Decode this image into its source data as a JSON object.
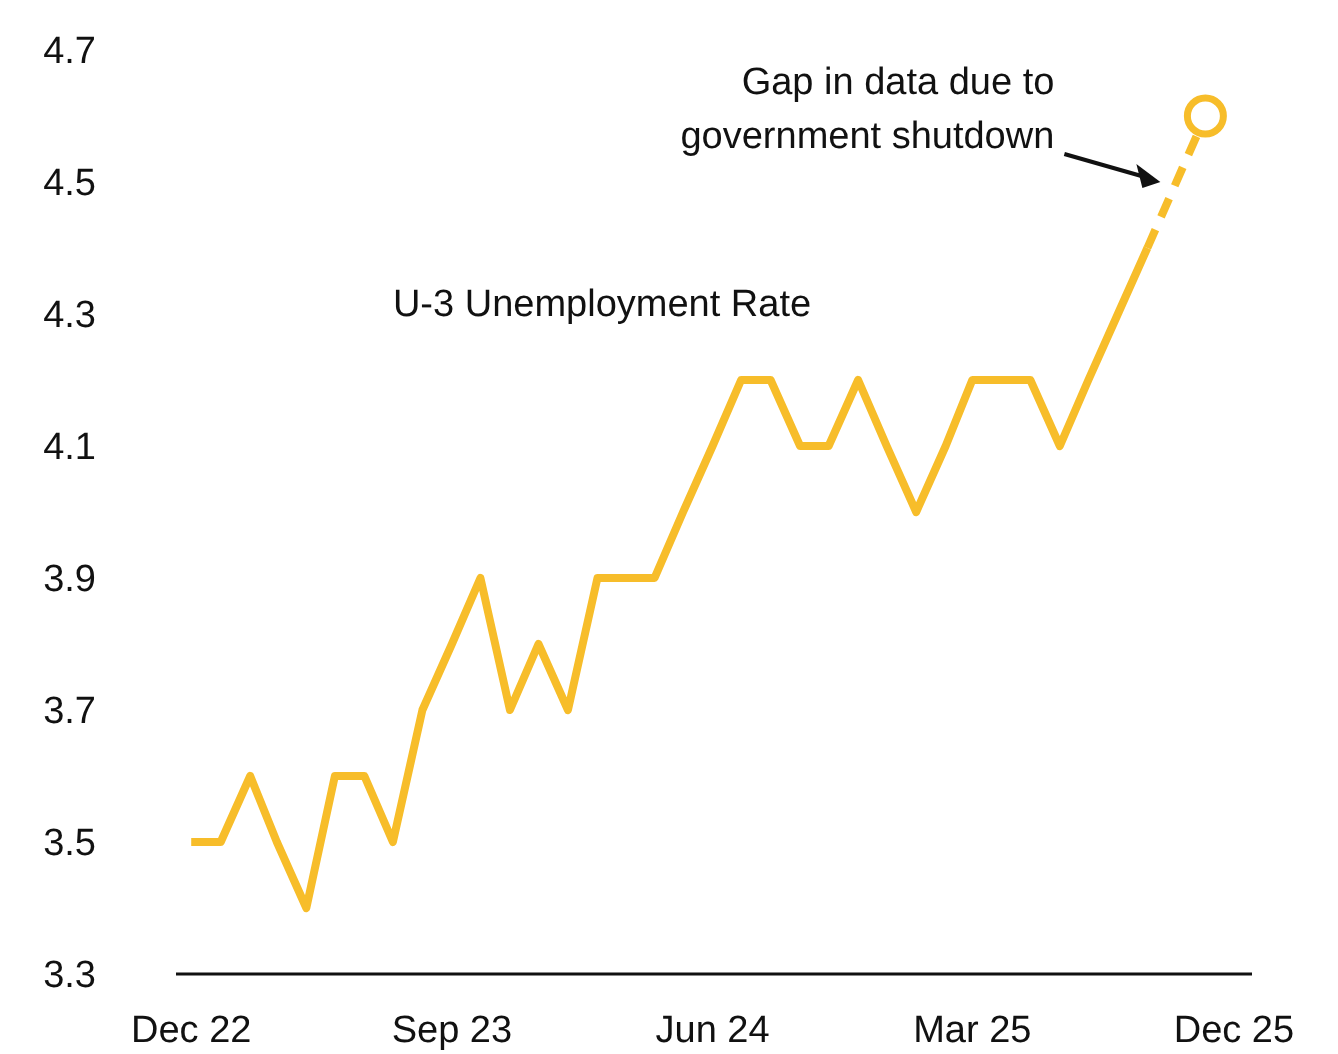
{
  "chart_data": {
    "type": "line",
    "x": [
      "2022-12",
      "2023-01",
      "2023-02",
      "2023-03",
      "2023-04",
      "2023-05",
      "2023-06",
      "2023-07",
      "2023-08",
      "2023-09",
      "2023-10",
      "2023-11",
      "2023-12",
      "2024-01",
      "2024-02",
      "2024-03",
      "2024-04",
      "2024-05",
      "2024-06",
      "2024-07",
      "2024-08",
      "2024-09",
      "2024-10",
      "2024-11",
      "2024-12",
      "2025-01",
      "2025-02",
      "2025-03",
      "2025-04",
      "2025-05",
      "2025-06",
      "2025-07",
      "2025-08",
      "2025-09"
    ],
    "series": [
      {
        "name": "U-3 Unemployment Rate",
        "color": "#f7bd2a",
        "line_style": "solid",
        "values": [
          3.5,
          3.5,
          3.6,
          3.5,
          3.4,
          3.6,
          3.6,
          3.5,
          3.7,
          3.8,
          3.9,
          3.7,
          3.8,
          3.7,
          3.9,
          3.9,
          3.9,
          4.0,
          4.1,
          4.2,
          4.2,
          4.1,
          4.1,
          4.2,
          4.1,
          4.0,
          4.1,
          4.2,
          4.2,
          4.2,
          4.1,
          4.2,
          4.3,
          4.4
        ]
      },
      {
        "type": "line",
        "color": "#f7bd2a",
        "line_style": "dashed",
        "x": [
          "2025-09",
          "2025-11"
        ],
        "values": [
          4.4,
          4.6
        ]
      },
      {
        "type": "scatter",
        "color": "#f7bd2a",
        "marker": "circle",
        "x": [
          "2025-11"
        ],
        "values": [
          4.6
        ]
      }
    ],
    "xlim": [
      "2022-11-15",
      "2025-12-20"
    ],
    "xticks": [
      {
        "value": "2022-12",
        "label": "Dec 22"
      },
      {
        "value": "2023-09",
        "label": "Sep 23"
      },
      {
        "value": "2024-06",
        "label": "Jun 24"
      },
      {
        "value": "2025-03",
        "label": "Mar 25"
      },
      {
        "value": "2025-12",
        "label": "Dec 25"
      }
    ],
    "ylim": [
      3.3,
      4.7
    ],
    "yticks": [
      3.3,
      3.5,
      3.7,
      3.9,
      4.1,
      4.3,
      4.5,
      4.7
    ],
    "annotations": [
      "Gap in data due to government shutdown"
    ],
    "grid": false
  }
}
